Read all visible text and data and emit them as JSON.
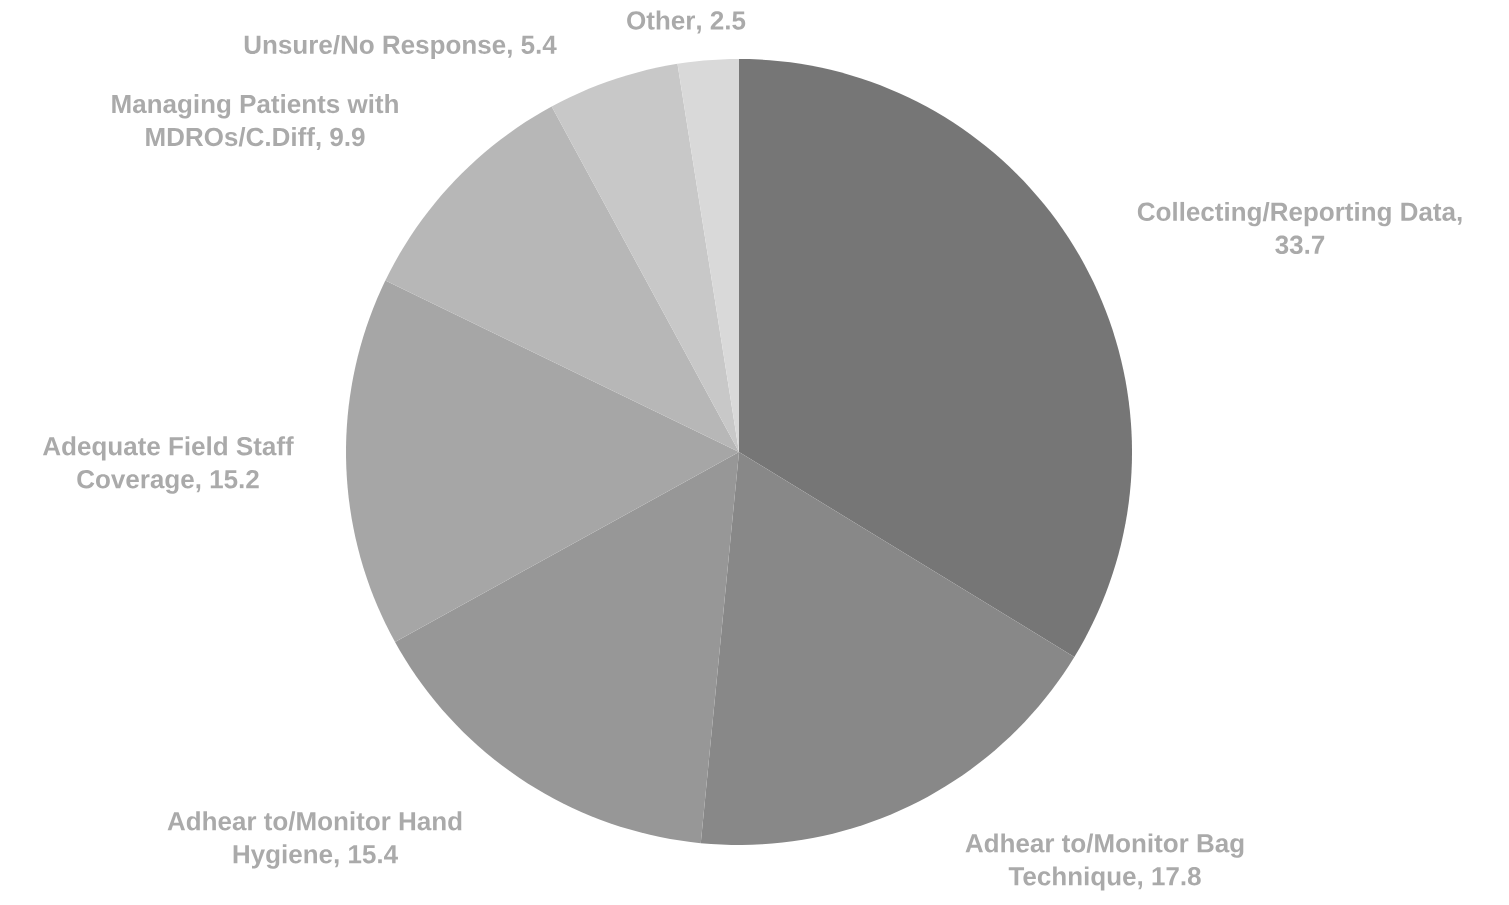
{
  "chart_data": {
    "type": "pie",
    "categories": [
      "Collecting/Reporting Data",
      "Adhear to/Monitor Bag Technique",
      "Adhear to/Monitor Hand Hygiene",
      "Adequate Field Staff Coverage",
      "Managing Patients with MDROs/C.Diff",
      "Unsure/No Response",
      "Other"
    ],
    "values": [
      33.7,
      17.8,
      15.4,
      15.2,
      9.9,
      5.4,
      2.5
    ],
    "value_labels": [
      ", 33.7",
      ", 17.8",
      ", 15.4",
      ", 15.2",
      ", 9.9",
      ", 5.4",
      ", 2.5"
    ],
    "colors": [
      "#767676",
      "#888888",
      "#979797",
      "#a6a6a6",
      "#b7b7b7",
      "#c8c8c8",
      "#d9d9d9"
    ]
  }
}
